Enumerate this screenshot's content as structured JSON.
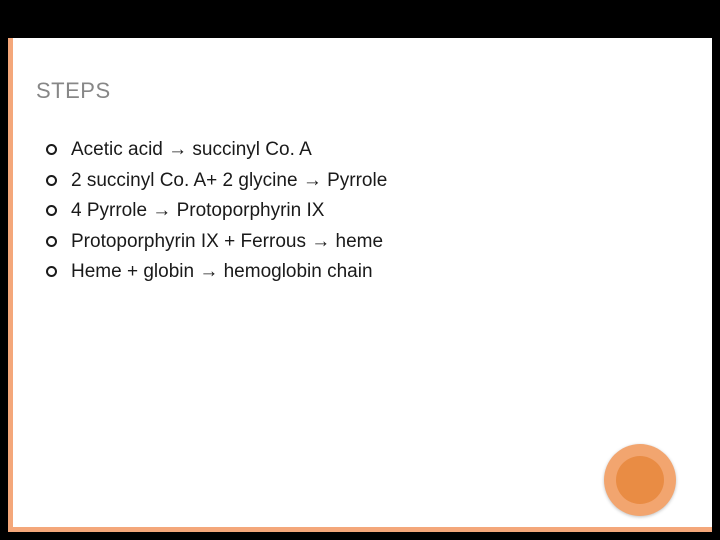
{
  "title": "STEPS",
  "accent_color": "#f4a77a",
  "circle_outer_color": "#f2a56f",
  "circle_inner_color": "#e98c44",
  "background_color": "#ffffff",
  "page_bg": "#000000",
  "title_color": "#878787",
  "text_color": "#1a1a1a",
  "title_fontsize": 22,
  "body_fontsize": 19,
  "items": [
    "Acetic acid → succinyl Co. A",
    "2 succinyl Co. A+ 2 glycine → Pyrrole",
    " 4 Pyrrole → Protoporphyrin IX",
    "Protoporphyrin IX + Ferrous → heme",
    "Heme + globin → hemoglobin chain"
  ]
}
